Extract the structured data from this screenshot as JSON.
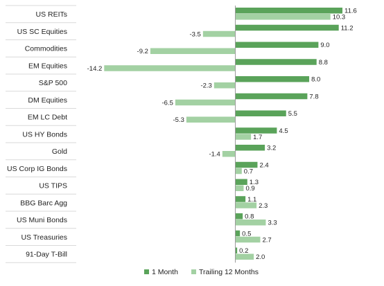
{
  "chart_data": {
    "type": "bar",
    "orientation": "horizontal",
    "categories": [
      "US REITs",
      "US SC Equities",
      "Commodities",
      "EM Equities",
      "S&P 500",
      "DM Equities",
      "EM LC Debt",
      "US HY Bonds",
      "Gold",
      "US Corp IG Bonds",
      "US TIPS",
      "BBG Barc Agg",
      "US Muni Bonds",
      "US Treasuries",
      "91-Day T-Bill"
    ],
    "series": [
      {
        "name": "1 Month",
        "color": "#5aa35a",
        "values": [
          11.6,
          11.2,
          9.0,
          8.8,
          8.0,
          7.8,
          5.5,
          4.5,
          3.2,
          2.4,
          1.3,
          1.1,
          0.8,
          0.5,
          0.2
        ]
      },
      {
        "name": "Trailing 12 Months",
        "color": "#a3d1a3",
        "values": [
          10.3,
          -3.5,
          -9.2,
          -14.2,
          -2.3,
          -6.5,
          -5.3,
          1.7,
          -1.4,
          0.7,
          0.9,
          2.3,
          3.3,
          2.7,
          2.0
        ]
      }
    ],
    "value_labels": [
      [
        "11.6",
        "11.2",
        "9.0",
        "8.8",
        "8.0",
        "7.8",
        "5.5",
        "4.5",
        "3.2",
        "2.4",
        "1.3",
        "1.1",
        "0.8",
        "0.5",
        "0.2"
      ],
      [
        "10.3",
        "-3.5",
        "-9.2",
        "-14.2",
        "-2.3",
        "-6.5",
        "-5.3",
        "1.7",
        "-1.4",
        "0.7",
        "0.9",
        "2.3",
        "3.3",
        "2.7",
        "2.0"
      ]
    ],
    "xlim": [
      -17.6,
      14.3
    ],
    "grid": false,
    "legend_position": "bottom-center"
  }
}
